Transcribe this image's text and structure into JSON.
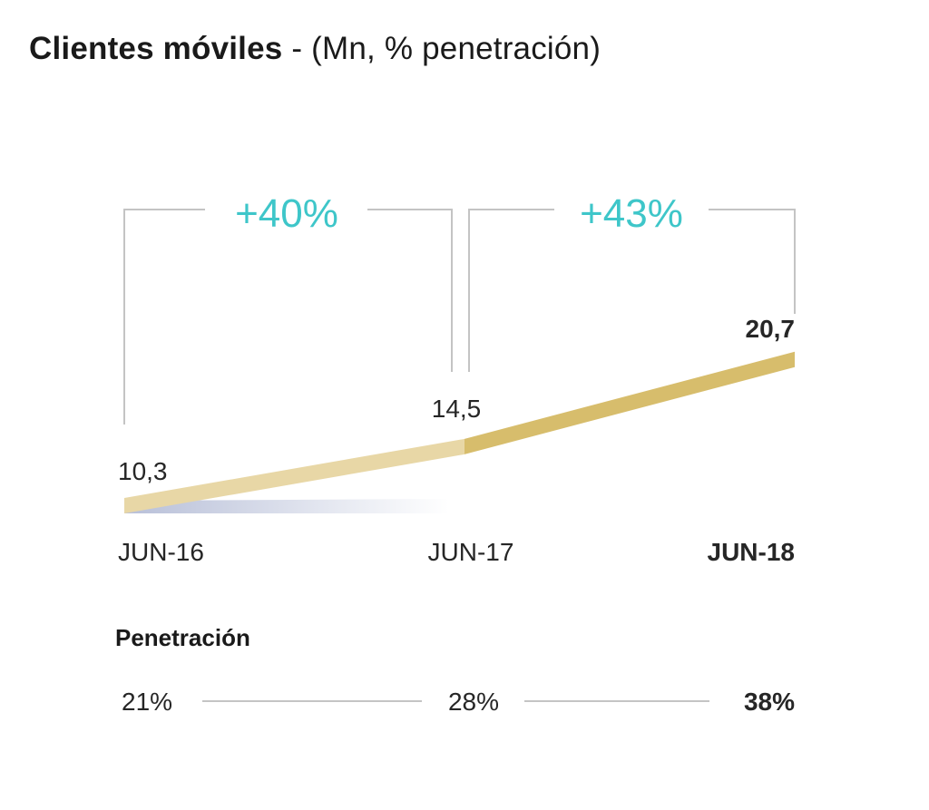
{
  "title": {
    "main": "Clientes móviles",
    "suffix": " - (Mn, % penetración)"
  },
  "colors": {
    "growth": "#3ec6c9",
    "segment_light": "#e8d7a6",
    "segment_dark": "#d7bd6c",
    "shadow": "#b4bcd6",
    "bracket": "#c4c4c4"
  },
  "chart_data": {
    "type": "line",
    "title": "Clientes móviles - (Mn, % penetración)",
    "categories": [
      "JUN-16",
      "JUN-17",
      "JUN-18"
    ],
    "series": [
      {
        "values": [
          10.3,
          14.5,
          20.7
        ],
        "value_labels": [
          "10,3",
          "14,5",
          "20,7"
        ]
      }
    ],
    "growth": [
      "+40%",
      "+43%"
    ],
    "penetration": {
      "title": "Penetración",
      "values": [
        "21%",
        "28%",
        "38%"
      ]
    },
    "highlight_last": true,
    "grid": false
  }
}
